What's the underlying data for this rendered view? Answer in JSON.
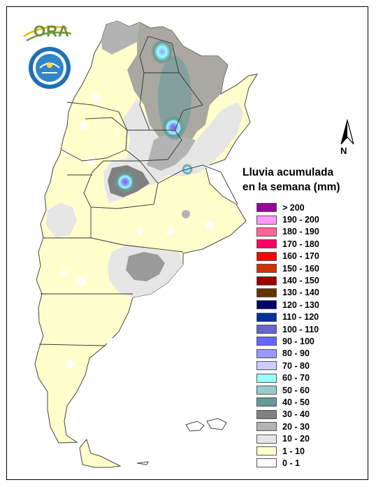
{
  "logos": {
    "ora_text": "ORA",
    "smn_name": "servicio meteorologico nacional"
  },
  "north_arrow": {
    "label": "N"
  },
  "legend": {
    "title_line1": "Lluvia acumulada",
    "title_line2": "en la semana (mm)",
    "items": [
      {
        "label": "> 200",
        "color": "#990099"
      },
      {
        "label": "190 - 200",
        "color": "#ff99ff"
      },
      {
        "label": "180 - 190",
        "color": "#ff6699"
      },
      {
        "label": "170 - 180",
        "color": "#ff0066"
      },
      {
        "label": "160 - 170",
        "color": "#ff0000"
      },
      {
        "label": "150 - 160",
        "color": "#cc3300"
      },
      {
        "label": "140 - 150",
        "color": "#990000"
      },
      {
        "label": "130 - 140",
        "color": "#663300"
      },
      {
        "label": "120 - 130",
        "color": "#000066"
      },
      {
        "label": "110 - 120",
        "color": "#003399"
      },
      {
        "label": "100 - 110",
        "color": "#6666cc"
      },
      {
        "label": "90 - 100",
        "color": "#6666ff"
      },
      {
        "label": "80 - 90",
        "color": "#9999ff"
      },
      {
        "label": "70 - 80",
        "color": "#ccccff"
      },
      {
        "label": "60 - 70",
        "color": "#99ffff"
      },
      {
        "label": "50 - 60",
        "color": "#99cccc"
      },
      {
        "label": "40 - 50",
        "color": "#669999"
      },
      {
        "label": "30 - 40",
        "color": "#808080"
      },
      {
        "label": "20 - 30",
        "color": "#b3b3b3"
      },
      {
        "label": "10 - 20",
        "color": "#e6e6e6"
      },
      {
        "label": "1 - 10",
        "color": "#ffffcc"
      },
      {
        "label": "0 - 1",
        "color": "#ffffff"
      }
    ]
  }
}
